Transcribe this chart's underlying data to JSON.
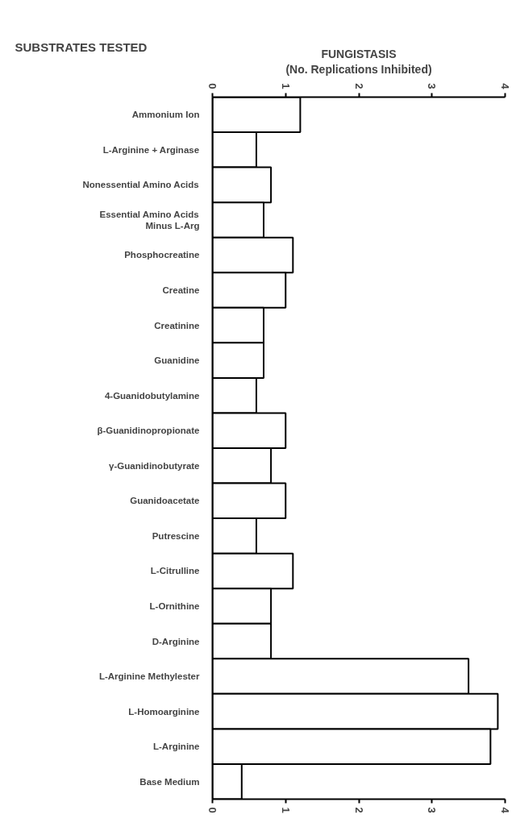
{
  "chart_data": {
    "type": "bar",
    "orientation": "horizontal",
    "ylabel": "SUBSTRATES TESTED",
    "x2label": "FUNGISTASIS\n(No. Replications Inhibited)",
    "categories": [
      "Ammonium Ion",
      "L-Arginine + Arginase",
      "Nonessential Amino Acids",
      "Essential Amino Acids\nMinus L-Arg",
      "Phosphocreatine",
      "Creatine",
      "Creatinine",
      "Guanidine",
      "4-Guanidobutylamine",
      "β-Guanidinopropionate",
      "γ-Guanidinobutyrate",
      "Guanidoacetate",
      "Putrescine",
      "L-Citrulline",
      "L-Ornithine",
      "D-Arginine",
      "L-Arginine Methylester",
      "L-Homoarginine",
      "L-Arginine",
      "Base Medium"
    ],
    "values": [
      1.2,
      0.6,
      0.8,
      0.7,
      1.1,
      1.0,
      0.7,
      0.7,
      0.6,
      1.0,
      0.8,
      1.0,
      0.6,
      1.1,
      0.8,
      0.8,
      3.5,
      3.9,
      3.8,
      0.4
    ],
    "color": "#ffffff",
    "xlim": [
      0,
      4
    ],
    "xticks": [
      0,
      1,
      2,
      3,
      4
    ],
    "x2lim": [
      0,
      4
    ],
    "x2ticks": [
      0,
      1,
      2,
      3,
      4
    ],
    "grid": false
  }
}
